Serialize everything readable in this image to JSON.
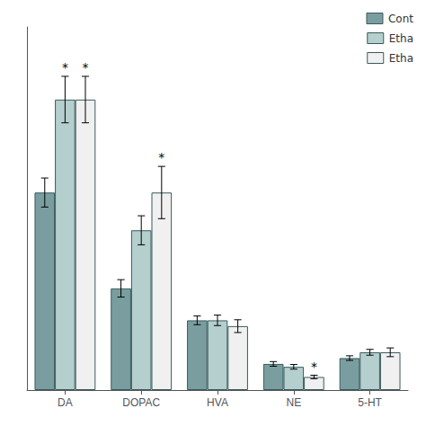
{
  "chart_data": {
    "type": "bar",
    "categories": [
      "DA",
      "DOPAC",
      "HVA",
      "NE",
      "5-HT"
    ],
    "series": [
      {
        "name": "Cont",
        "color": "#7a9ea0",
        "values": [
          68,
          35,
          24,
          9,
          11
        ],
        "errors": [
          5,
          3,
          1.5,
          0.8,
          0.8
        ],
        "annotations": [
          null,
          null,
          null,
          null,
          null
        ]
      },
      {
        "name": "Etha",
        "color": "#b5cece",
        "values": [
          100,
          55,
          24,
          8,
          13
        ],
        "errors": [
          8,
          5,
          1.8,
          0.8,
          1.0
        ],
        "annotations": [
          "*",
          null,
          null,
          null,
          null
        ]
      },
      {
        "name": "Etha",
        "color": "#f0f0f0",
        "values": [
          100,
          68,
          22,
          4.5,
          13
        ],
        "errors": [
          8,
          9,
          2.2,
          0.6,
          1.5
        ],
        "annotations": [
          "*",
          "*",
          null,
          "*",
          null
        ]
      }
    ],
    "ylim": [
      0,
      125
    ],
    "tick_labels": "x",
    "grid": false,
    "legend": "upper right"
  }
}
